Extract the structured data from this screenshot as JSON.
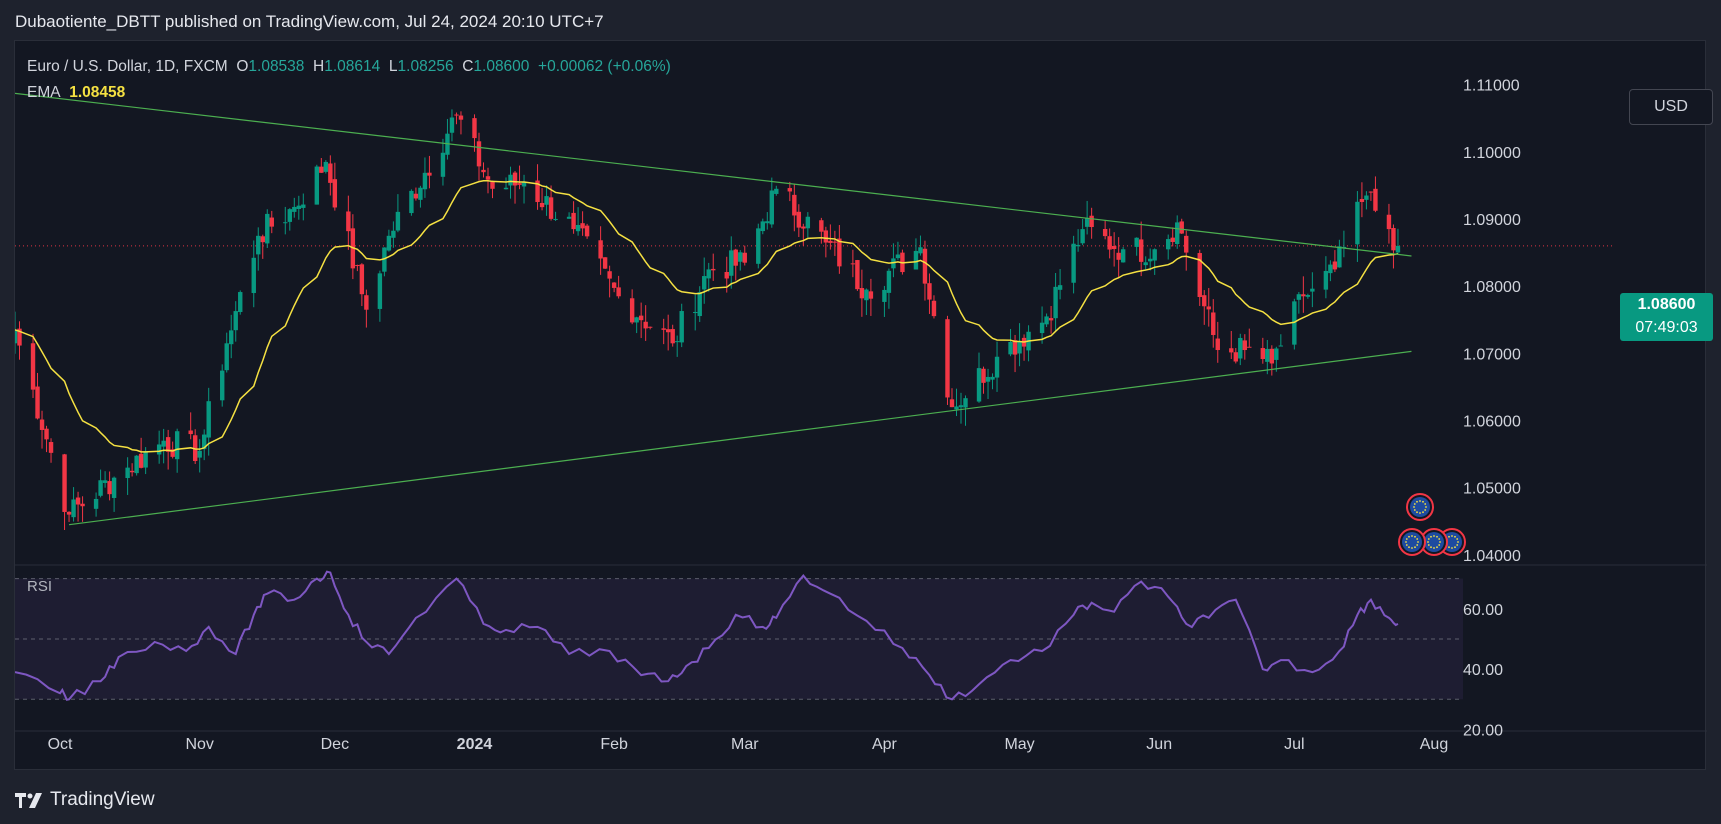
{
  "header": {
    "text": "Dubaotiente_DBTT published on TradingView.com, Jul 24, 2024 20:10 UTC+7"
  },
  "legend": {
    "symbol": "Euro / U.S. Dollar, 1D, FXCM",
    "o_label": "O",
    "o": "1.08538",
    "h_label": "H",
    "h": "1.08614",
    "l_label": "L",
    "l": "1.08256",
    "c_label": "C",
    "c": "1.08600",
    "change": "+0.00062 (+0.06%)",
    "ema_label": "EMA",
    "ema": "1.08458"
  },
  "currency_button": "USD",
  "price_tag": {
    "price": "1.08600",
    "countdown": "07:49:03"
  },
  "rsi_label": "RSI",
  "footer": {
    "brand": "TradingView"
  },
  "colors": {
    "up": "#089981",
    "down": "#f23645",
    "ema": "#f5e142",
    "rsi": "#7e57c2",
    "trendline": "#4caf50",
    "background": "#131722"
  },
  "chart_data": [
    {
      "type": "candlestick",
      "title": "Euro / U.S. Dollar, 1D, FXCM",
      "y_axis_side": "right",
      "ylim": [
        1.0385,
        1.1165
      ],
      "y_ticks": [
        "1.11000",
        "1.10000",
        "1.09000",
        "1.08000",
        "1.07000",
        "1.06000",
        "1.05000",
        "1.04000"
      ],
      "x_ticks": [
        "Oct",
        "Nov",
        "Dec",
        "2024",
        "Feb",
        "Mar",
        "Apr",
        "May",
        "Jun",
        "Jul",
        "Aug"
      ],
      "x_range": [
        "2023-09-21",
        "2024-08-03"
      ],
      "last_price": 1.086,
      "close_series": {
        "dates": [
          "2023-09-21",
          "2023-10-03",
          "2023-10-13",
          "2023-10-24",
          "2023-11-01",
          "2023-11-07",
          "2023-11-14",
          "2023-11-22",
          "2023-11-29",
          "2023-12-08",
          "2023-12-13",
          "2023-12-28",
          "2024-01-05",
          "2024-01-12",
          "2024-01-23",
          "2024-02-02",
          "2024-02-14",
          "2024-02-22",
          "2024-03-01",
          "2024-03-08",
          "2024-03-19",
          "2024-03-28",
          "2024-04-09",
          "2024-04-16",
          "2024-04-26",
          "2024-05-07",
          "2024-05-15",
          "2024-05-24",
          "2024-05-31",
          "2024-06-05",
          "2024-06-14",
          "2024-06-20",
          "2024-06-26",
          "2024-07-03",
          "2024-07-10",
          "2024-07-17",
          "2024-07-22",
          "2024-07-24"
        ],
        "close": [
          1.0735,
          1.046,
          1.0515,
          1.057,
          1.0555,
          1.0715,
          1.0875,
          1.0918,
          1.0985,
          1.0765,
          1.0875,
          1.1055,
          1.0945,
          1.0955,
          1.0885,
          1.0785,
          1.0715,
          1.0825,
          1.0835,
          1.0945,
          1.0865,
          1.0795,
          1.0858,
          1.062,
          1.0695,
          1.0755,
          1.0885,
          1.0855,
          1.0855,
          1.0895,
          1.0705,
          1.0705,
          1.0685,
          1.0785,
          1.0825,
          1.0935,
          1.0885,
          1.086
        ]
      }
    },
    {
      "type": "line",
      "title": "EMA",
      "values": "smoothed exponential moving average of the daily close series",
      "last_value": 1.08458
    },
    {
      "type": "line",
      "title": "Trendlines",
      "series": [
        {
          "name": "",
          "points": [
            {
              "x": "2023-09-21",
              "y": 1.1087
            },
            {
              "x": "2024-07-27",
              "y": 1.0845
            }
          ]
        },
        {
          "name": "",
          "points": [
            {
              "x": "2023-10-03",
              "y": 1.0445
            },
            {
              "x": "2024-07-27",
              "y": 1.0703
            }
          ]
        }
      ]
    },
    {
      "type": "line",
      "title": "RSI",
      "ylim": [
        19.5,
        74.5
      ],
      "y_ticks": [
        "60.00",
        "40.00",
        "20.00"
      ],
      "band": [
        30,
        70
      ],
      "midline": 50,
      "series": [
        {
          "name": "",
          "dates": [
            "2023-09-21",
            "2023-10-01",
            "2023-10-03",
            "2023-10-10",
            "2023-10-14",
            "2023-10-22",
            "2023-10-29",
            "2023-11-03",
            "2023-11-09",
            "2023-11-13",
            "2023-11-16",
            "2023-11-22",
            "2023-11-27",
            "2023-11-30",
            "2023-12-04",
            "2023-12-08",
            "2023-12-13",
            "2023-12-19",
            "2023-12-28",
            "2024-01-03",
            "2024-01-08",
            "2024-01-15",
            "2024-01-22",
            "2024-01-31",
            "2024-02-07",
            "2024-02-13",
            "2024-02-17",
            "2024-02-22",
            "2024-02-28",
            "2024-03-05",
            "2024-03-08",
            "2024-03-14",
            "2024-03-20",
            "2024-03-28",
            "2024-04-05",
            "2024-04-11",
            "2024-04-16",
            "2024-04-22",
            "2024-04-29",
            "2024-05-06",
            "2024-05-13",
            "2024-05-17",
            "2024-05-22",
            "2024-05-28",
            "2024-06-03",
            "2024-06-07",
            "2024-06-12",
            "2024-06-18",
            "2024-06-24",
            "2024-06-28",
            "2024-07-05",
            "2024-07-11",
            "2024-07-15",
            "2024-07-18",
            "2024-07-22",
            "2024-07-24"
          ],
          "values": [
            39,
            32,
            30,
            36,
            44,
            49,
            46,
            54,
            45,
            58,
            65,
            63,
            70,
            72,
            58,
            49,
            45,
            57,
            70,
            55,
            53,
            54,
            45,
            46,
            38,
            36,
            41,
            47,
            58,
            54,
            57,
            71,
            65,
            56,
            47,
            38,
            30,
            35,
            43,
            46,
            58,
            62,
            59,
            69,
            64,
            55,
            57,
            63,
            40,
            43,
            39,
            46,
            58,
            63,
            57,
            55
          ]
        }
      ]
    }
  ]
}
